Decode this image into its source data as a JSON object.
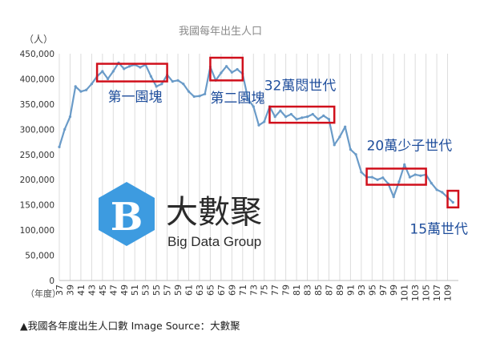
{
  "chart_data": {
    "type": "line",
    "title": "我國每年出生人口",
    "ylabel": "（人）",
    "xlabel": "（年度）",
    "ylim": [
      0,
      450000
    ],
    "y_ticks": [
      "0",
      "50,000",
      "100,000",
      "150,000",
      "200,000",
      "250,000",
      "300,000",
      "350,000",
      "400,000",
      "450,000"
    ],
    "y_tick_values": [
      0,
      50000,
      100000,
      150000,
      200000,
      250000,
      300000,
      350000,
      400000,
      450000
    ],
    "x_tick_years": [
      37,
      39,
      41,
      43,
      45,
      47,
      49,
      51,
      53,
      55,
      57,
      59,
      61,
      63,
      65,
      67,
      69,
      71,
      73,
      75,
      77,
      79,
      81,
      83,
      85,
      87,
      89,
      91,
      93,
      95,
      97,
      99,
      101,
      103,
      105,
      107,
      109
    ],
    "grid": "vertical",
    "line_color": "#6a9bc8",
    "box_color": "#d0101c",
    "annotation_color": "#1f4e9c",
    "series": [
      {
        "x": [
          37,
          38,
          39,
          40,
          41,
          42,
          43,
          44,
          45,
          46,
          47,
          48,
          49,
          50,
          51,
          52,
          53,
          54,
          55,
          56,
          57,
          58,
          59,
          60,
          61,
          62,
          63,
          64,
          65,
          66,
          67,
          68,
          69,
          70,
          71,
          72,
          73,
          74,
          75,
          76,
          77,
          78,
          79,
          80,
          81,
          82,
          83,
          84,
          85,
          86,
          87,
          88,
          89,
          90,
          91,
          92,
          93,
          94,
          95,
          96,
          97,
          98,
          99,
          100,
          101,
          102,
          103,
          104,
          105,
          106,
          107,
          108,
          109,
          110
        ],
        "y": [
          265000,
          300000,
          325000,
          385000,
          375000,
          378000,
          390000,
          405000,
          415000,
          400000,
          415000,
          432000,
          420000,
          425000,
          428000,
          423000,
          428000,
          405000,
          385000,
          390000,
          408000,
          395000,
          397000,
          390000,
          375000,
          365000,
          366000,
          370000,
          424000,
          397000,
          412000,
          425000,
          413000,
          419000,
          410000,
          360000,
          345000,
          308000,
          315000,
          345000,
          325000,
          337000,
          325000,
          330000,
          320000,
          323000,
          325000,
          330000,
          320000,
          327000,
          320000,
          269000,
          285000,
          305000,
          260000,
          250000,
          215000,
          205000,
          205000,
          200000,
          204000,
          192000,
          166000,
          196000,
          230000,
          205000,
          210000,
          208000,
          210000,
          193000,
          180000,
          175000,
          165000,
          155000
        ]
      }
    ],
    "highlight_boxes": [
      {
        "x_range": [
          44,
          57
        ],
        "y_range": [
          395000,
          430000
        ]
      },
      {
        "x_range": [
          65,
          71
        ],
        "y_range": [
          397000,
          442000
        ]
      },
      {
        "x_range": [
          76,
          88
        ],
        "y_range": [
          313000,
          345000
        ]
      },
      {
        "x_range": [
          94,
          105
        ],
        "y_range": [
          190000,
          222000
        ]
      },
      {
        "x_range": [
          109,
          111
        ],
        "y_range": [
          145000,
          178000
        ]
      }
    ],
    "annotations": [
      {
        "text": "第一園塊",
        "x": 46,
        "y": 355000
      },
      {
        "text": "第二園塊",
        "x": 65,
        "y": 353000
      },
      {
        "text": "32萬悶世代",
        "x": 75,
        "y": 378000
      },
      {
        "text": "20萬少子世代",
        "x": 94,
        "y": 258000
      },
      {
        "text": "15萬世代",
        "x": 102,
        "y": 93000
      }
    ]
  },
  "watermark": {
    "main": "大數聚",
    "sub": "Big Data Group",
    "logo_letter": "B"
  },
  "caption": "▲我國各年度出生人口數 Image Source：大數聚"
}
